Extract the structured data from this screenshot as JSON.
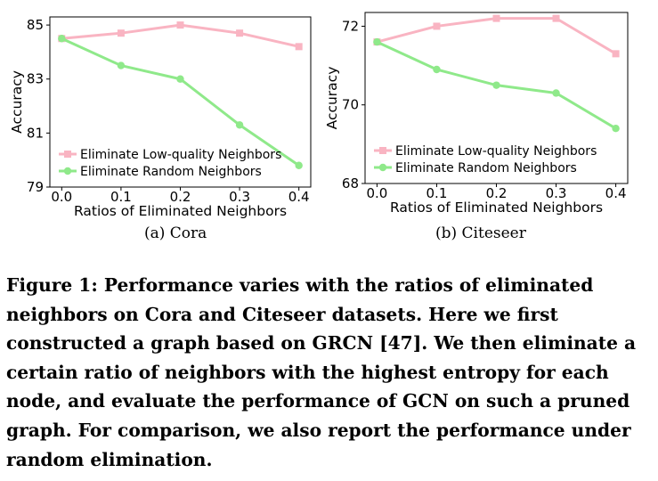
{
  "chart_data": [
    {
      "type": "line",
      "x": [
        0.0,
        0.1,
        0.2,
        0.3,
        0.4
      ],
      "xticks": [
        "0.0",
        "0.1",
        "0.2",
        "0.3",
        "0.4"
      ],
      "xlim": [
        -0.02,
        0.42
      ],
      "ylim": [
        79,
        85.3
      ],
      "yticks": [
        79,
        81,
        83,
        85
      ],
      "ytick_labels": [
        "79",
        "81",
        "83",
        "85"
      ],
      "xlabel": "Ratios of Eliminated Neighbors",
      "ylabel": "Accuracy",
      "legend_position": "lower-left",
      "series": [
        {
          "name": "Eliminate Low-quality Neighbors",
          "values": [
            84.5,
            84.7,
            85.0,
            84.7,
            84.2
          ],
          "color": "#f9b4c2",
          "marker": "square"
        },
        {
          "name": "Eliminate Random Neighbors",
          "values": [
            84.5,
            83.5,
            83.0,
            81.3,
            79.8
          ],
          "color": "#8fe98a",
          "marker": "circle"
        }
      ],
      "caption": "(a)  Cora"
    },
    {
      "type": "line",
      "x": [
        0.0,
        0.1,
        0.2,
        0.3,
        0.4
      ],
      "xticks": [
        "0.0",
        "0.1",
        "0.2",
        "0.3",
        "0.4"
      ],
      "xlim": [
        -0.02,
        0.42
      ],
      "ylim": [
        68,
        72.35
      ],
      "yticks": [
        68,
        70,
        72
      ],
      "ytick_labels": [
        "68",
        "70",
        "72"
      ],
      "xlabel": "Ratios of Eliminated Neighbors",
      "ylabel": "Accuracy",
      "legend_position": "lower-left",
      "series": [
        {
          "name": "Eliminate Low-quality Neighbors",
          "values": [
            71.6,
            72.0,
            72.2,
            72.2,
            71.3
          ],
          "color": "#f9b4c2",
          "marker": "square"
        },
        {
          "name": "Eliminate Random Neighbors",
          "values": [
            71.6,
            70.9,
            70.5,
            70.3,
            69.4
          ],
          "color": "#8fe98a",
          "marker": "circle"
        }
      ],
      "caption": "(b)  Citeseer"
    }
  ],
  "caption": "Figure 1: Performance varies with the ratios of eliminated neighbors on Cora and Citeseer datasets. Here we first constructed a graph based on GRCN [47]. We then eliminate a certain ratio of neighbors with the highest entropy for each node, and evaluate the performance of GCN on such a pruned graph. For comparison, we also report the performance under random elimination."
}
